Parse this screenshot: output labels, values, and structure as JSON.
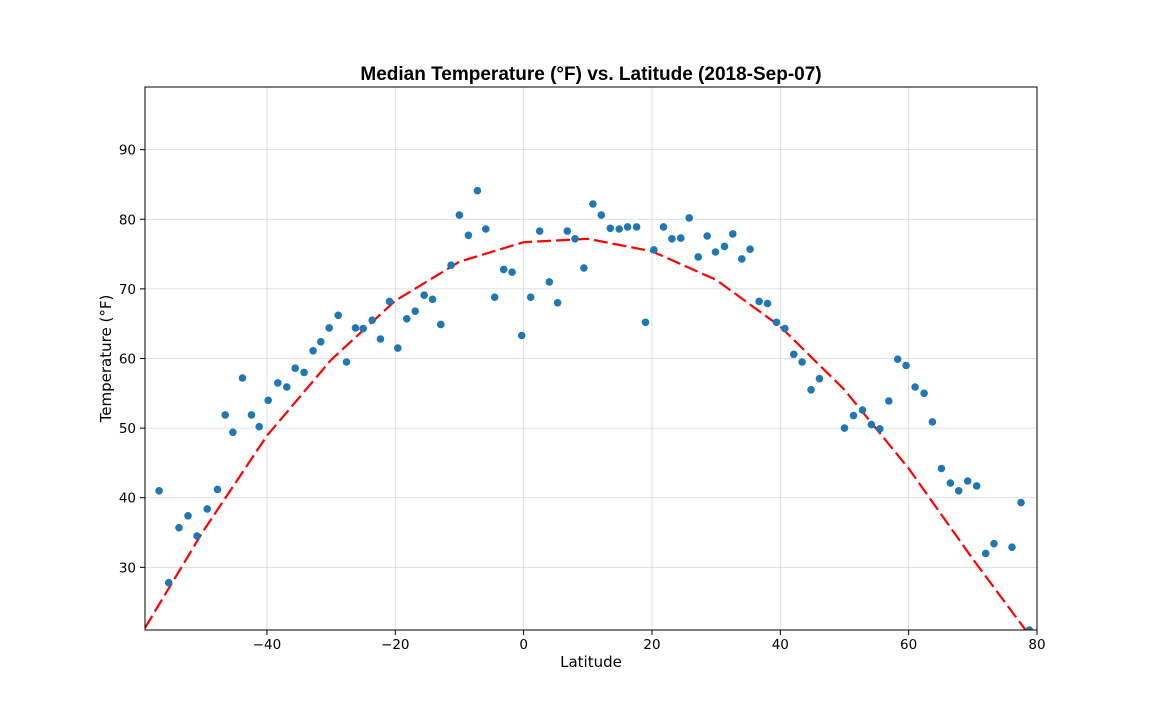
{
  "chart_data": {
    "type": "scatter",
    "title": "Median Temperature (°F) vs. Latitude (2018-Sep-07)",
    "xlabel": "Latitude",
    "ylabel": "Temperature (°F)",
    "xlim": [
      -59,
      80
    ],
    "ylim": [
      21,
      99
    ],
    "xticks": [
      -40,
      -20,
      0,
      20,
      40,
      60,
      80
    ],
    "yticks": [
      30,
      40,
      50,
      60,
      70,
      80,
      90
    ],
    "xtick_labels": [
      "−40",
      "−20",
      "0",
      "20",
      "40",
      "60",
      "80"
    ],
    "ytick_labels": [
      "30",
      "40",
      "50",
      "60",
      "70",
      "80",
      "90"
    ],
    "grid": true,
    "point_color": "#1f77b4",
    "fit_color": "#ff0000",
    "fit": {
      "style": "dashed",
      "x": [
        -59,
        -50,
        -40,
        -30,
        -20,
        -10,
        0,
        10,
        20,
        30,
        40,
        50,
        60,
        70,
        80
      ],
      "y": [
        21.3,
        35.1,
        48.9,
        59.8,
        68.3,
        73.9,
        76.7,
        77.2,
        75.4,
        71.3,
        64.6,
        55.5,
        44.2,
        31.2,
        18.8
      ]
    },
    "points": {
      "x": [
        -56.8,
        -55.3,
        -53.7,
        -52.3,
        -50.9,
        -49.3,
        -47.7,
        -46.5,
        -45.3,
        -43.8,
        -42.4,
        -41.2,
        -39.8,
        -38.3,
        -36.9,
        -35.6,
        -34.2,
        -32.8,
        -31.6,
        -30.3,
        -28.9,
        -27.6,
        -26.2,
        -25.0,
        -23.6,
        -22.3,
        -20.9,
        -19.6,
        -18.2,
        -16.9,
        -15.5,
        -14.2,
        -12.9,
        -11.3,
        -10.0,
        -8.6,
        -7.2,
        -5.9,
        -4.5,
        -3.1,
        -1.8,
        -0.3,
        1.1,
        2.5,
        4.0,
        5.3,
        6.8,
        8.0,
        9.4,
        10.8,
        12.1,
        13.5,
        14.9,
        16.2,
        17.6,
        19.0,
        20.3,
        21.8,
        23.1,
        24.5,
        25.8,
        27.2,
        28.6,
        29.9,
        31.3,
        32.6,
        34.0,
        35.3,
        36.7,
        38.0,
        39.4,
        40.7,
        42.1,
        43.4,
        44.8,
        46.1,
        50.0,
        51.4,
        52.8,
        54.2,
        55.5,
        56.9,
        58.3,
        59.6,
        61.0,
        62.4,
        63.7,
        65.1,
        66.5,
        67.8,
        69.2,
        70.6,
        72.0,
        73.3,
        76.1,
        77.5,
        78.8
      ],
      "y": [
        41.0,
        27.8,
        35.7,
        37.4,
        34.5,
        38.4,
        41.2,
        51.9,
        49.4,
        57.2,
        51.9,
        50.2,
        54.0,
        56.5,
        55.9,
        58.6,
        58.0,
        61.1,
        62.4,
        64.4,
        66.2,
        59.5,
        64.4,
        64.3,
        65.5,
        62.8,
        68.2,
        61.5,
        65.7,
        66.8,
        69.1,
        68.5,
        64.9,
        73.4,
        80.6,
        77.7,
        84.1,
        78.6,
        68.8,
        72.8,
        72.4,
        63.3,
        68.8,
        78.3,
        71.0,
        68.0,
        78.3,
        77.2,
        73.0,
        82.2,
        80.6,
        78.7,
        78.6,
        78.9,
        78.9,
        65.2,
        75.6,
        78.9,
        77.2,
        77.3,
        80.2,
        74.6,
        77.6,
        75.3,
        76.1,
        77.9,
        74.3,
        75.7,
        68.2,
        67.9,
        65.2,
        64.3,
        60.6,
        59.5,
        55.5,
        57.1,
        50.0,
        51.8,
        52.6,
        50.5,
        49.9,
        53.9,
        59.9,
        59.0,
        55.9,
        55.0,
        50.9,
        44.2,
        42.1,
        41.0,
        42.4,
        41.7,
        32.0,
        33.4,
        32.9,
        39.3,
        21.0
      ]
    }
  }
}
